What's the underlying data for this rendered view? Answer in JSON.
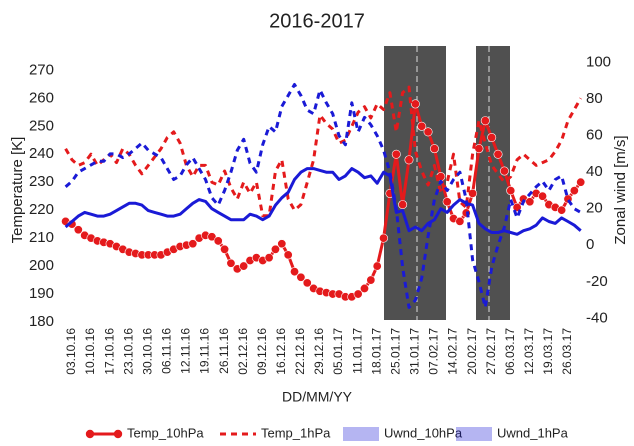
{
  "chart_data": {
    "type": "line",
    "title": "2016-2017",
    "x_label": "DD/MM/YY",
    "y_label": "Temperature [K]",
    "y2_label": "Zonal wind [m/s]",
    "categories": [
      null,
      "03.10.16",
      null,
      null,
      "10.10.16",
      null,
      null,
      "17.10.16",
      null,
      null,
      "23.10.16",
      null,
      null,
      "30.10.16",
      null,
      null,
      "06.11.16",
      null,
      null,
      "12.11.16",
      null,
      null,
      "19.11.16",
      null,
      null,
      "26.11.16",
      null,
      null,
      "02.12.16",
      null,
      null,
      "09.12.16",
      null,
      null,
      "16.12.16",
      null,
      null,
      "22.12.16",
      null,
      null,
      "29.12.16",
      null,
      null,
      "05.01.17",
      null,
      null,
      "11.01.17",
      null,
      null,
      "18.01.17",
      null,
      null,
      "25.01.17",
      null,
      null,
      "31.01.17",
      null,
      null,
      "07.02.17",
      null,
      null,
      "14.02.17",
      null,
      null,
      "20.02.17",
      null,
      null,
      "27.02.17",
      null,
      null,
      "06.03.17",
      null,
      null,
      "12.03.17",
      null,
      null,
      "19.03.17",
      null,
      null,
      "26.03.17",
      null,
      null
    ],
    "ylim": [
      180,
      278
    ],
    "yticks": [
      180,
      190,
      200,
      210,
      220,
      230,
      240,
      250,
      260,
      270
    ],
    "y2lim": [
      -42,
      108
    ],
    "y2ticks": [
      -40,
      -20,
      0,
      20,
      40,
      60,
      80,
      100
    ],
    "grid": false,
    "series": [
      {
        "name": "Temp_10hPa",
        "color": "#e41a1c",
        "line": "solid",
        "markers": true,
        "values": [
          216,
          215,
          213,
          211,
          210,
          209,
          208.5,
          208,
          207,
          206,
          205,
          204.5,
          204,
          204,
          204,
          204,
          205,
          206,
          207,
          207.5,
          208,
          210,
          211,
          210.5,
          209,
          206,
          201,
          199,
          200,
          202,
          203,
          202,
          203,
          206,
          208,
          204,
          198,
          196,
          194,
          192,
          191,
          190.5,
          190,
          190,
          189,
          189,
          190,
          192,
          195,
          200,
          210,
          226,
          240,
          222,
          238,
          258,
          250,
          248,
          242,
          232,
          223,
          217,
          216,
          219,
          226,
          242,
          252,
          246,
          240,
          234,
          227,
          221,
          224,
          223,
          226,
          225,
          222,
          221,
          220,
          224,
          227,
          230
        ]
      },
      {
        "name": "Temp_1hPa",
        "color": "#e41a1c",
        "line": "dashed",
        "markers": false,
        "values": [
          242,
          238,
          236,
          237,
          240,
          236,
          238,
          240,
          237,
          242,
          240,
          236,
          233,
          236,
          239,
          242,
          246,
          248,
          244,
          236,
          232,
          236,
          236,
          230,
          229,
          234,
          228,
          224,
          230,
          226,
          230,
          218,
          218,
          234,
          238,
          224,
          220,
          222,
          230,
          238,
          254,
          251,
          249,
          244,
          245,
          250,
          255,
          257,
          253,
          258,
          256,
          262,
          248,
          262,
          264,
          241,
          234,
          229,
          236,
          226,
          230,
          240,
          223,
          221,
          240,
          252,
          244,
          236,
          233,
          230,
          232,
          238,
          240,
          238,
          236,
          237,
          238,
          241,
          245,
          252,
          256,
          260
        ]
      },
      {
        "name": "Uwnd_10hPa",
        "color": "#1a1ad6",
        "line": "solid",
        "markers": false,
        "axis": "y2",
        "values": [
          10,
          13,
          16,
          18,
          17,
          16,
          16,
          17,
          19,
          21,
          23,
          23,
          22,
          19,
          18,
          17,
          16,
          16,
          17,
          20,
          23,
          25,
          24,
          20,
          18,
          16,
          14,
          14,
          14,
          17,
          16,
          14,
          16,
          22,
          26,
          29,
          36,
          40,
          42,
          42,
          41,
          40,
          40,
          36,
          38,
          42,
          40,
          37,
          38,
          34,
          40,
          38,
          18,
          19,
          8,
          10,
          8,
          12,
          14,
          20,
          18,
          22,
          25,
          23,
          22,
          12,
          9,
          7,
          7,
          8,
          7,
          6,
          8,
          9,
          11,
          15,
          13,
          12,
          15,
          13,
          11,
          8
        ]
      },
      {
        "name": "Uwnd_1hPa",
        "color": "#1a1ad6",
        "line": "dashed",
        "markers": false,
        "axis": "y2",
        "values": [
          32,
          35,
          40,
          42,
          44,
          46,
          46,
          50,
          50,
          48,
          50,
          53,
          56,
          52,
          50,
          48,
          42,
          36,
          38,
          44,
          48,
          42,
          36,
          26,
          22,
          30,
          40,
          52,
          58,
          45,
          40,
          55,
          65,
          62,
          76,
          82,
          88,
          82,
          74,
          72,
          85,
          78,
          72,
          60,
          55,
          78,
          62,
          70,
          66,
          60,
          52,
          40,
          20,
          -12,
          -34,
          -30,
          -18,
          5,
          25,
          35,
          30,
          36,
          40,
          25,
          -8,
          -20,
          -34,
          -12,
          0,
          10,
          25,
          15,
          24,
          28,
          32,
          35,
          30,
          36,
          38,
          25,
          20,
          18
        ]
      }
    ]
  }
}
